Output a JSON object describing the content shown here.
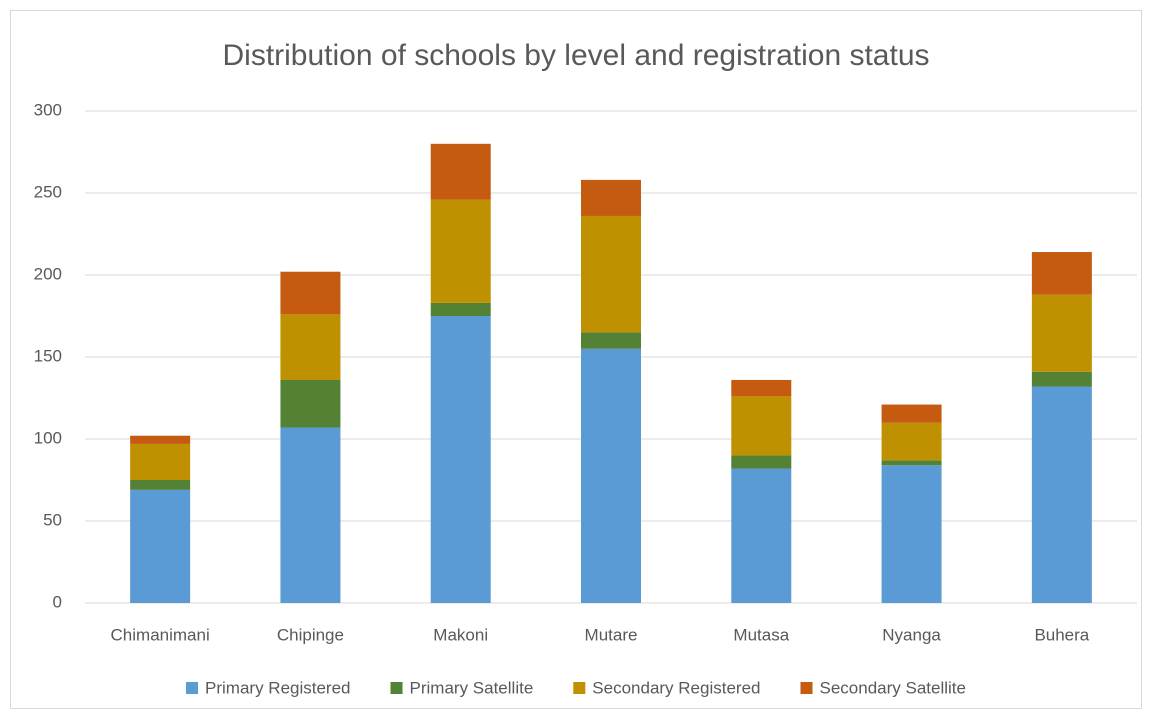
{
  "chart_data": {
    "type": "stacked_bar",
    "title": "Distribution of schools by level and registration status",
    "categories": [
      "Chimanimani",
      "Chipinge",
      "Makoni",
      "Mutare",
      "Mutasa",
      "Nyanga",
      "Buhera"
    ],
    "series": [
      {
        "name": "Primary Registered",
        "color": "#5b9bd5",
        "values": [
          69,
          107,
          175,
          155,
          82,
          84,
          132
        ]
      },
      {
        "name": "Primary Satellite",
        "color": "#548235",
        "values": [
          6,
          29,
          8,
          10,
          8,
          3,
          9
        ]
      },
      {
        "name": "Secondary Registered",
        "color": "#bf9000",
        "values": [
          22,
          40,
          63,
          71,
          36,
          23,
          47
        ]
      },
      {
        "name": "Secondary Satellite",
        "color": "#c55a11",
        "values": [
          5,
          26,
          34,
          22,
          10,
          11,
          26
        ]
      }
    ],
    "ylim": [
      0,
      300
    ],
    "yticks": [
      0,
      50,
      100,
      150,
      200,
      250,
      300
    ],
    "grid": true,
    "legend": "bottom"
  }
}
